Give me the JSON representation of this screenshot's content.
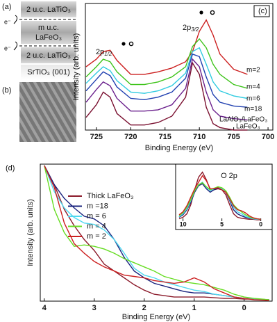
{
  "schematic": {
    "label": "(a)",
    "top_layer": "2 u.c. LaTiO₃",
    "middle_layer": [
      "m u.c.",
      "LaFeO₃"
    ],
    "bottom_layer": "2 u.c. LaTiO₃",
    "substrate": "SrTiO₃ (001)",
    "electron": [
      "e⁻",
      "e⁻"
    ]
  },
  "image_panel": {
    "label": "(b)"
  },
  "chart_data": [
    {
      "type": "line",
      "label": "(c)",
      "x_label": "Binding Energy (eV)",
      "y_label": "Intensity (arb. units)",
      "peak_labels": [
        {
          "main": "2p",
          "sub": "1/2"
        },
        {
          "main": "2p",
          "sub": "3/2"
        }
      ],
      "xlim": [
        726.6,
        699.3
      ],
      "xticks": [
        725,
        720,
        715,
        710,
        705,
        700
      ],
      "ylim": [
        0,
        100
      ],
      "x": [
        726.5,
        725,
        724,
        723,
        722,
        720,
        718,
        716,
        714,
        712,
        711,
        710,
        709,
        708,
        707,
        705,
        703
      ],
      "series": [
        {
          "name": "m=2",
          "color": "#cc1f1f",
          "values": [
            50,
            56,
            62,
            63,
            55,
            44,
            44,
            46,
            49,
            54,
            62,
            78,
            87,
            75,
            60,
            48,
            44
          ]
        },
        {
          "name": "m=4",
          "color": "#3fc41c",
          "values": [
            42,
            50,
            56,
            54,
            46,
            36,
            36,
            38,
            42,
            50,
            66,
            72,
            65,
            52,
            44,
            36,
            33
          ]
        },
        {
          "name": "m=6",
          "color": "#2fcbe0",
          "values": [
            37,
            45,
            50,
            47,
            39,
            30,
            29,
            31,
            35,
            45,
            62,
            65,
            52,
            38,
            31,
            27,
            25
          ]
        },
        {
          "name": "m=18",
          "color": "#1f3fb0",
          "values": [
            31,
            40,
            46,
            43,
            34,
            25,
            24,
            26,
            30,
            41,
            60,
            58,
            42,
            28,
            22,
            19,
            18
          ]
        },
        {
          "name": "LaAlO₃/LaFeO₃",
          "color": "#6a1f8c",
          "values": [
            22,
            32,
            38,
            35,
            25,
            15,
            15,
            16,
            20,
            33,
            56,
            50,
            30,
            16,
            11,
            9,
            8
          ]
        },
        {
          "name": "LaFeO₃",
          "color": "#7a1030",
          "values": [
            10,
            20,
            30,
            26,
            13,
            4,
            4,
            6,
            11,
            26,
            53,
            44,
            18,
            5,
            2,
            0,
            0
          ]
        }
      ]
    },
    {
      "type": "line",
      "label": "(d)",
      "x_label": "Binding Energy (eV)",
      "y_label": "Intensity (arb. units)",
      "xlim": [
        4.08,
        -0.56
      ],
      "xticks": [
        4,
        3,
        2,
        1,
        0
      ],
      "ylim": [
        0,
        100
      ],
      "legend": "upper left",
      "x": [
        4,
        3.8,
        3.6,
        3.4,
        3.2,
        3,
        2.8,
        2.6,
        2.4,
        2.2,
        2,
        1.8,
        1.6,
        1.4,
        1.2,
        1,
        0.8,
        0.6,
        0.4,
        0.2,
        0,
        -0.2,
        -0.5
      ],
      "series": [
        {
          "name": "Thick LaFeO₃",
          "color": "#8b1a2a",
          "values": [
            99,
            85,
            67,
            55,
            45,
            37,
            27,
            22,
            17,
            12,
            8,
            5,
            4,
            3,
            3,
            3,
            3,
            2.5,
            2,
            2,
            1.5,
            1.5,
            1
          ]
        },
        {
          "name": "m =18",
          "color": "#1a237e",
          "values": [
            99,
            85,
            75,
            68,
            62,
            60,
            55,
            45,
            32,
            22,
            17,
            13,
            11,
            9,
            7,
            6,
            6,
            5,
            4,
            3,
            2,
            1.5,
            1
          ]
        },
        {
          "name": "m = 6",
          "color": "#4fd8f0",
          "values": [
            99,
            80,
            68,
            61,
            57,
            56,
            52,
            45,
            35,
            24,
            19,
            17,
            14,
            12,
            10,
            8,
            7,
            5,
            4,
            3,
            2,
            1.5,
            1
          ]
        },
        {
          "name": "m = 4",
          "color": "#66dd22",
          "values": [
            99,
            67,
            50,
            40,
            41,
            40,
            38,
            35,
            31,
            28,
            25,
            22,
            18,
            16,
            14,
            13,
            12,
            10,
            8,
            5,
            3,
            2,
            1
          ]
        },
        {
          "name": "m = 2",
          "color": "#cc2020",
          "values": [
            99,
            83,
            57,
            42,
            35,
            29,
            25,
            22,
            19,
            18,
            17,
            15,
            14,
            13,
            14,
            17,
            14,
            9,
            6,
            3,
            2,
            1,
            0.5
          ]
        }
      ]
    },
    {
      "type": "line",
      "title": "O 2p",
      "xlim": [
        10.68,
        -1.28
      ],
      "xticks": [
        10,
        5,
        0
      ],
      "ylim": [
        0,
        100
      ],
      "x": [
        10.5,
        10,
        9.5,
        9,
        8.5,
        8,
        7.5,
        7,
        6.5,
        6,
        5.5,
        5,
        4.5,
        4,
        3.5,
        3,
        2.5,
        2,
        1.5,
        1,
        0.5,
        0
      ],
      "series": [
        {
          "color": "#8b1a2a",
          "values": [
            2,
            5,
            12,
            30,
            60,
            85,
            95,
            80,
            60,
            60,
            62,
            60,
            50,
            30,
            12,
            5,
            3,
            2,
            1,
            1,
            0,
            0
          ]
        },
        {
          "color": "#1a237e",
          "values": [
            5,
            10,
            20,
            35,
            55,
            68,
            72,
            62,
            55,
            60,
            63,
            62,
            55,
            38,
            20,
            12,
            8,
            5,
            3,
            2,
            1,
            1
          ]
        },
        {
          "color": "#4fd8f0",
          "values": [
            6,
            12,
            22,
            38,
            58,
            70,
            75,
            65,
            58,
            62,
            65,
            62,
            55,
            40,
            25,
            16,
            12,
            7,
            4,
            2,
            1,
            1
          ]
        },
        {
          "color": "#66dd22",
          "values": [
            8,
            14,
            25,
            40,
            58,
            70,
            74,
            66,
            60,
            63,
            66,
            64,
            58,
            45,
            30,
            22,
            16,
            10,
            6,
            3,
            2,
            1
          ]
        },
        {
          "color": "#cc2020",
          "values": [
            10,
            16,
            28,
            45,
            62,
            75,
            88,
            78,
            62,
            62,
            64,
            60,
            55,
            42,
            28,
            20,
            18,
            14,
            8,
            4,
            2,
            1
          ]
        }
      ]
    }
  ]
}
